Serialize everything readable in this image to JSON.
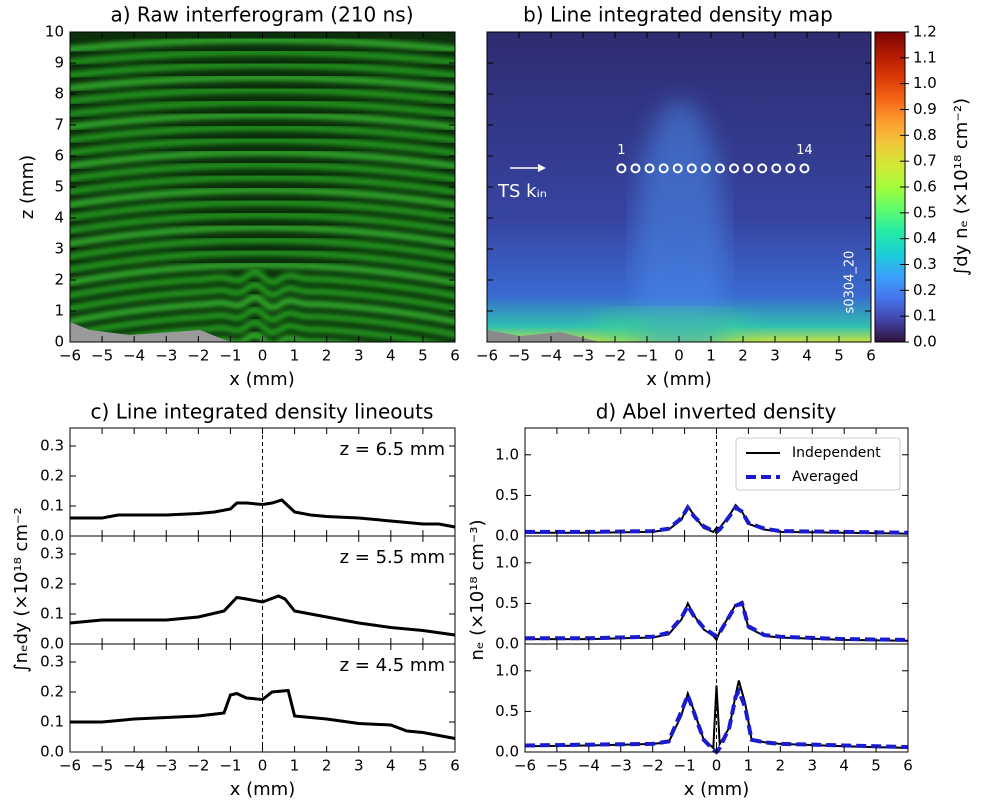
{
  "chart_data": [
    {
      "type": "image",
      "title": "a) Raw interferogram (210 ns)",
      "xlabel": "x (mm)",
      "ylabel": "z (mm)",
      "xlim": [
        -6,
        6
      ],
      "ylim": [
        0,
        10
      ],
      "xticks": [
        {
          "value": -6,
          "label": "−6"
        },
        {
          "value": -5,
          "label": "−5"
        },
        {
          "value": -4,
          "label": "−4"
        },
        {
          "value": -3,
          "label": "−3"
        },
        {
          "value": -2,
          "label": "−2"
        },
        {
          "value": -1,
          "label": "−1"
        },
        0,
        1,
        2,
        3,
        4,
        5,
        6
      ],
      "yticks": [
        0,
        1,
        2,
        3,
        4,
        5,
        6,
        7,
        8,
        9,
        10
      ]
    },
    {
      "type": "map",
      "title": "b) Line integrated density map",
      "xlabel": "x (mm)",
      "xlim": [
        -6,
        6
      ],
      "ylim": [
        0,
        10
      ],
      "xticks": [
        {
          "value": -6,
          "label": "−6"
        },
        {
          "value": -5,
          "label": "−5"
        },
        {
          "value": -4,
          "label": "−4"
        },
        {
          "value": -3,
          "label": "−3"
        },
        {
          "value": -2,
          "label": "−2"
        },
        {
          "value": -1,
          "label": "−1"
        },
        0,
        1,
        2,
        3,
        4,
        5,
        6
      ],
      "yticks": [
        0,
        1,
        2,
        3,
        4,
        5,
        6,
        7,
        8,
        9,
        10
      ],
      "points": {
        "x": [
          -1.8,
          -1.36,
          -0.92,
          -0.48,
          -0.04,
          0.4,
          0.84,
          1.28,
          1.72,
          2.16,
          2.6,
          3.04,
          3.48,
          3.92
        ],
        "y": [
          5.6,
          5.6,
          5.6,
          5.6,
          5.6,
          5.6,
          5.6,
          5.6,
          5.6,
          5.6,
          5.6,
          5.6,
          5.6,
          5.6
        ]
      },
      "annotations": [
        "1",
        "14",
        "TS kᵢₙ",
        "s0304_20"
      ],
      "colorbar": {
        "label": "∫dy nₑ (×10¹⁸ cm⁻²)",
        "lim": [
          0,
          1.2
        ],
        "ticks": [
          {
            "value": 0,
            "label": "0.0"
          },
          0.1,
          0.2,
          0.3,
          0.4,
          0.5,
          0.6,
          0.7,
          0.8,
          0.9,
          {
            "value": 1,
            "label": "1.0"
          },
          1.1,
          1.2
        ],
        "colormap": [
          "#30123b",
          "#4145ab",
          "#4675ed",
          "#39a2fc",
          "#1bcfd4",
          "#24eca6",
          "#61fc6c",
          "#a4fc3b",
          "#d1e834",
          "#f3c63a",
          "#fe9b2d",
          "#f36315",
          "#d93806",
          "#b11901",
          "#7a0403"
        ]
      }
    },
    {
      "type": "line",
      "title": "c) Line integrated density lineouts",
      "xlabel": "x (mm)",
      "ylabel": "∫nₑdy (×10¹⁸ cm⁻²",
      "xlim": [
        -6,
        6
      ],
      "ylim": [
        0,
        0.36
      ],
      "vline": 0,
      "xticks": [
        {
          "value": -6,
          "label": "−6"
        },
        {
          "value": -5,
          "label": "−5"
        },
        {
          "value": -4,
          "label": "−4"
        },
        {
          "value": -3,
          "label": "−3"
        },
        {
          "value": -2,
          "label": "−2"
        },
        {
          "value": -1,
          "label": "−1"
        },
        0,
        1,
        2,
        3,
        4,
        5,
        6
      ],
      "yticks": [
        {
          "value": 0,
          "label": "0.0"
        },
        0.1,
        0.2,
        0.3
      ],
      "panels": [
        {
          "annotation": "z = 6.5 mm",
          "series": [
            {
              "color": "#000000",
              "x": [
                -6,
                -5,
                -4.5,
                -4,
                -3,
                -2,
                -1.5,
                -1,
                -0.8,
                -0.5,
                0,
                0.3,
                0.6,
                0.8,
                1,
                1.5,
                2,
                3,
                4,
                5,
                5.5,
                6
              ],
              "values": [
                0.06,
                0.06,
                0.07,
                0.07,
                0.07,
                0.075,
                0.08,
                0.09,
                0.11,
                0.11,
                0.105,
                0.11,
                0.12,
                0.1,
                0.08,
                0.07,
                0.065,
                0.06,
                0.05,
                0.04,
                0.04,
                0.03
              ]
            }
          ]
        },
        {
          "annotation": "z = 5.5 mm",
          "series": [
            {
              "color": "#000000",
              "x": [
                -6,
                -5,
                -4,
                -3,
                -2,
                -1.2,
                -0.8,
                -0.5,
                0,
                0.5,
                0.7,
                1,
                1.5,
                2,
                3,
                4,
                5,
                6
              ],
              "values": [
                0.07,
                0.08,
                0.08,
                0.08,
                0.09,
                0.11,
                0.155,
                0.15,
                0.14,
                0.16,
                0.15,
                0.11,
                0.1,
                0.09,
                0.07,
                0.055,
                0.045,
                0.03
              ]
            }
          ]
        },
        {
          "annotation": "z = 4.5 mm",
          "series": [
            {
              "color": "#000000",
              "x": [
                -6,
                -5,
                -4,
                -3,
                -2,
                -1.2,
                -1,
                -0.8,
                -0.5,
                0,
                0.3,
                0.8,
                1,
                1.5,
                2,
                3,
                4,
                4.5,
                5,
                6
              ],
              "values": [
                0.1,
                0.1,
                0.11,
                0.115,
                0.12,
                0.13,
                0.19,
                0.195,
                0.18,
                0.175,
                0.2,
                0.205,
                0.12,
                0.115,
                0.11,
                0.095,
                0.09,
                0.07,
                0.065,
                0.045
              ]
            }
          ]
        }
      ]
    },
    {
      "type": "line",
      "title": "d) Abel inverted density",
      "xlabel": "x (mm)",
      "ylabel": "nₑ (×10¹⁸ cm⁻³)",
      "xlim": [
        -6,
        6
      ],
      "ylim": [
        0,
        1.33
      ],
      "vline": 0,
      "xticks": [
        {
          "value": -6,
          "label": "−6"
        },
        {
          "value": -5,
          "label": "−5"
        },
        {
          "value": -4,
          "label": "−4"
        },
        {
          "value": -3,
          "label": "−3"
        },
        {
          "value": -2,
          "label": "−2"
        },
        {
          "value": -1,
          "label": "−1"
        },
        0,
        1,
        2,
        3,
        4,
        5,
        6
      ],
      "yticks": [
        {
          "value": 0,
          "label": "0.0"
        },
        0.5,
        {
          "value": 1,
          "label": "1.0"
        }
      ],
      "panels": [
        {
          "series": [
            {
              "name": "Independent",
              "color": "#000000",
              "dash": false,
              "x": [
                -6,
                -4,
                -2,
                -1.5,
                -1.1,
                -0.9,
                -0.7,
                -0.4,
                -0.1,
                0,
                0.1,
                0.4,
                0.6,
                0.8,
                1,
                1.5,
                2,
                4,
                6
              ],
              "values": [
                0.04,
                0.04,
                0.05,
                0.08,
                0.2,
                0.37,
                0.25,
                0.1,
                0.05,
                0.1,
                0.1,
                0.25,
                0.38,
                0.3,
                0.15,
                0.08,
                0.05,
                0.04,
                0.03
              ]
            },
            {
              "name": "Averaged",
              "color": "#1a1ad0",
              "dash": true,
              "x": [
                -6,
                -4,
                -2,
                -1.5,
                -1.1,
                -0.9,
                -0.7,
                -0.4,
                -0.1,
                0,
                0.1,
                0.4,
                0.6,
                0.8,
                1,
                1.5,
                2,
                4,
                6
              ],
              "values": [
                0.05,
                0.05,
                0.06,
                0.09,
                0.22,
                0.35,
                0.24,
                0.12,
                0.06,
                0.05,
                0.08,
                0.24,
                0.35,
                0.3,
                0.16,
                0.09,
                0.06,
                0.05,
                0.04
              ]
            }
          ]
        },
        {
          "series": [
            {
              "name": "Independent",
              "color": "#000000",
              "dash": false,
              "x": [
                -6,
                -4,
                -2,
                -1.5,
                -1.1,
                -0.9,
                -0.7,
                -0.4,
                -0.1,
                0,
                0.1,
                0.4,
                0.6,
                0.8,
                1,
                1.5,
                2,
                4,
                6
              ],
              "values": [
                0.06,
                0.06,
                0.08,
                0.12,
                0.3,
                0.5,
                0.35,
                0.18,
                0.1,
                0.05,
                0.15,
                0.35,
                0.48,
                0.52,
                0.2,
                0.1,
                0.08,
                0.05,
                0.04
              ]
            },
            {
              "name": "Averaged",
              "color": "#1a1ad0",
              "dash": true,
              "x": [
                -6,
                -4,
                -2,
                -1.5,
                -1.1,
                -0.9,
                -0.7,
                -0.4,
                -0.1,
                0,
                0.1,
                0.4,
                0.6,
                0.8,
                1,
                1.5,
                2,
                4,
                6
              ],
              "values": [
                0.07,
                0.07,
                0.09,
                0.14,
                0.32,
                0.47,
                0.34,
                0.2,
                0.12,
                0.1,
                0.14,
                0.34,
                0.47,
                0.5,
                0.22,
                0.11,
                0.09,
                0.06,
                0.05
              ]
            }
          ]
        },
        {
          "series": [
            {
              "name": "Independent",
              "color": "#000000",
              "dash": false,
              "x": [
                -6,
                -4,
                -2,
                -1.5,
                -1.1,
                -0.9,
                -0.7,
                -0.4,
                -0.1,
                0,
                0.1,
                0.4,
                0.6,
                0.7,
                0.9,
                1.1,
                1.5,
                2,
                4,
                6
              ],
              "values": [
                0.07,
                0.08,
                0.1,
                0.12,
                0.45,
                0.72,
                0.5,
                0.15,
                0.05,
                0.82,
                0.1,
                0.3,
                0.7,
                0.88,
                0.6,
                0.15,
                0.12,
                0.1,
                0.07,
                0.05
              ]
            },
            {
              "name": "Averaged",
              "color": "#1a1ad0",
              "dash": true,
              "x": [
                -6,
                -4,
                -2,
                -1.5,
                -1.1,
                -0.9,
                -0.7,
                -0.4,
                -0.1,
                0,
                0.1,
                0.4,
                0.6,
                0.7,
                0.9,
                1.1,
                1.5,
                2,
                4,
                6
              ],
              "values": [
                0.08,
                0.09,
                0.1,
                0.13,
                0.5,
                0.7,
                0.48,
                0.15,
                0.03,
                0.0,
                0.05,
                0.3,
                0.68,
                0.75,
                0.55,
                0.15,
                0.12,
                0.1,
                0.08,
                0.06
              ]
            }
          ]
        }
      ]
    }
  ]
}
